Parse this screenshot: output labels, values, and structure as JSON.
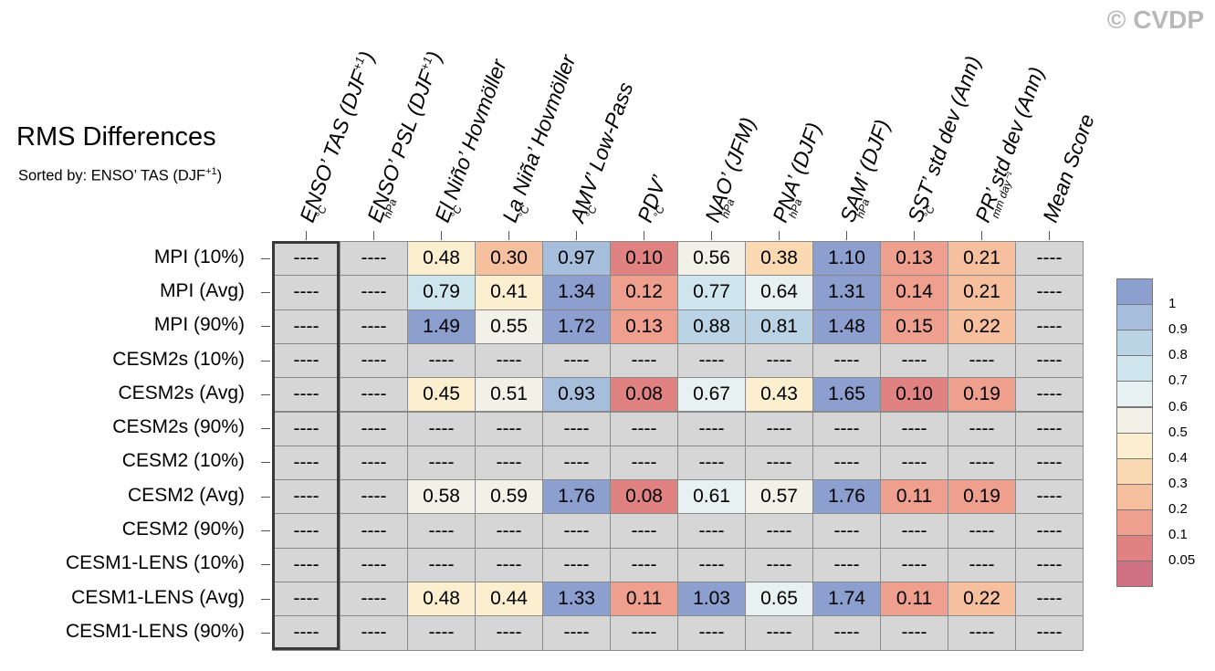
{
  "watermark": "© CVDP",
  "title": "RMS Differences",
  "subtitle_text": "Sorted by: ENSO’ TAS (DJF",
  "subtitle_sup": "+1",
  "subtitle_end": ")",
  "chart_data": {
    "type": "heatmap",
    "columns": [
      {
        "label": "ENSO’ TAS (DJF",
        "sup": "+1",
        "end": ")",
        "unit": "°C"
      },
      {
        "label": "ENSO’ PSL (DJF",
        "sup": "+1",
        "end": ")",
        "unit": "hPa"
      },
      {
        "label": "El Niño’ Hovmöller",
        "sup": "",
        "end": "",
        "unit": "°C"
      },
      {
        "label": "La Niña’ Hovmöller",
        "sup": "",
        "end": "",
        "unit": "°C"
      },
      {
        "label": "AMV’ Low-Pass",
        "sup": "",
        "end": "",
        "unit": "°C"
      },
      {
        "label": "PDV’",
        "sup": "",
        "end": "",
        "unit": "°C"
      },
      {
        "label": "NAO’ (JFM)",
        "sup": "",
        "end": "",
        "unit": "hPa"
      },
      {
        "label": "PNA’ (DJF)",
        "sup": "",
        "end": "",
        "unit": "hPa"
      },
      {
        "label": "SAM’ (DJF)",
        "sup": "",
        "end": "",
        "unit": "hPa"
      },
      {
        "label": "SST’ std dev (Ann)",
        "sup": "",
        "end": "",
        "unit": "°C"
      },
      {
        "label": "PR’ std dev (Ann)",
        "sup": "",
        "end": "",
        "unit": "mm day⁻¹"
      },
      {
        "label": "Mean Score",
        "sup": "",
        "end": "",
        "unit": ""
      }
    ],
    "rows": [
      "MPI (10%)",
      "MPI (Avg)",
      "MPI (90%)",
      "CESM2s (10%)",
      "CESM2s (Avg)",
      "CESM2s (90%)",
      "CESM2 (10%)",
      "CESM2 (Avg)",
      "CESM2 (90%)",
      "CESM1-LENS (10%)",
      "CESM1-LENS (Avg)",
      "CESM1-LENS (90%)"
    ],
    "values": [
      [
        null,
        null,
        0.48,
        0.3,
        0.97,
        0.1,
        0.56,
        0.38,
        1.1,
        0.13,
        0.21,
        null
      ],
      [
        null,
        null,
        0.79,
        0.41,
        1.34,
        0.12,
        0.77,
        0.64,
        1.31,
        0.14,
        0.21,
        null
      ],
      [
        null,
        null,
        1.49,
        0.55,
        1.72,
        0.13,
        0.88,
        0.81,
        1.48,
        0.15,
        0.22,
        null
      ],
      [
        null,
        null,
        null,
        null,
        null,
        null,
        null,
        null,
        null,
        null,
        null,
        null
      ],
      [
        null,
        null,
        0.45,
        0.51,
        0.93,
        0.08,
        0.67,
        0.43,
        1.65,
        0.1,
        0.19,
        null
      ],
      [
        null,
        null,
        null,
        null,
        null,
        null,
        null,
        null,
        null,
        null,
        null,
        null
      ],
      [
        null,
        null,
        null,
        null,
        null,
        null,
        null,
        null,
        null,
        null,
        null,
        null
      ],
      [
        null,
        null,
        0.58,
        0.59,
        1.76,
        0.08,
        0.61,
        0.57,
        1.76,
        0.11,
        0.19,
        null
      ],
      [
        null,
        null,
        null,
        null,
        null,
        null,
        null,
        null,
        null,
        null,
        null,
        null
      ],
      [
        null,
        null,
        null,
        null,
        null,
        null,
        null,
        null,
        null,
        null,
        null,
        null
      ],
      [
        null,
        null,
        0.48,
        0.44,
        1.33,
        0.11,
        1.03,
        0.65,
        1.74,
        0.11,
        0.22,
        null
      ],
      [
        null,
        null,
        null,
        null,
        null,
        null,
        null,
        null,
        null,
        null,
        null,
        null
      ]
    ],
    "missing_text": "----",
    "missing_color": "#d6d6d6",
    "highlighted_column": 0,
    "colorbar": {
      "labels": [
        "1",
        "0.9",
        "0.8",
        "0.7",
        "0.6",
        "0.5",
        "0.4",
        "0.3",
        "0.2",
        "0.1",
        "0.05"
      ],
      "colors": [
        "#8d9fcf",
        "#a6bedc",
        "#bad4e6",
        "#d0e6ef",
        "#e8f1f2",
        "#f1f1e7",
        "#fcefd0",
        "#fad9b3",
        "#f6bf9d",
        "#ee9f8d",
        "#e08281",
        "#cf7183"
      ]
    }
  }
}
